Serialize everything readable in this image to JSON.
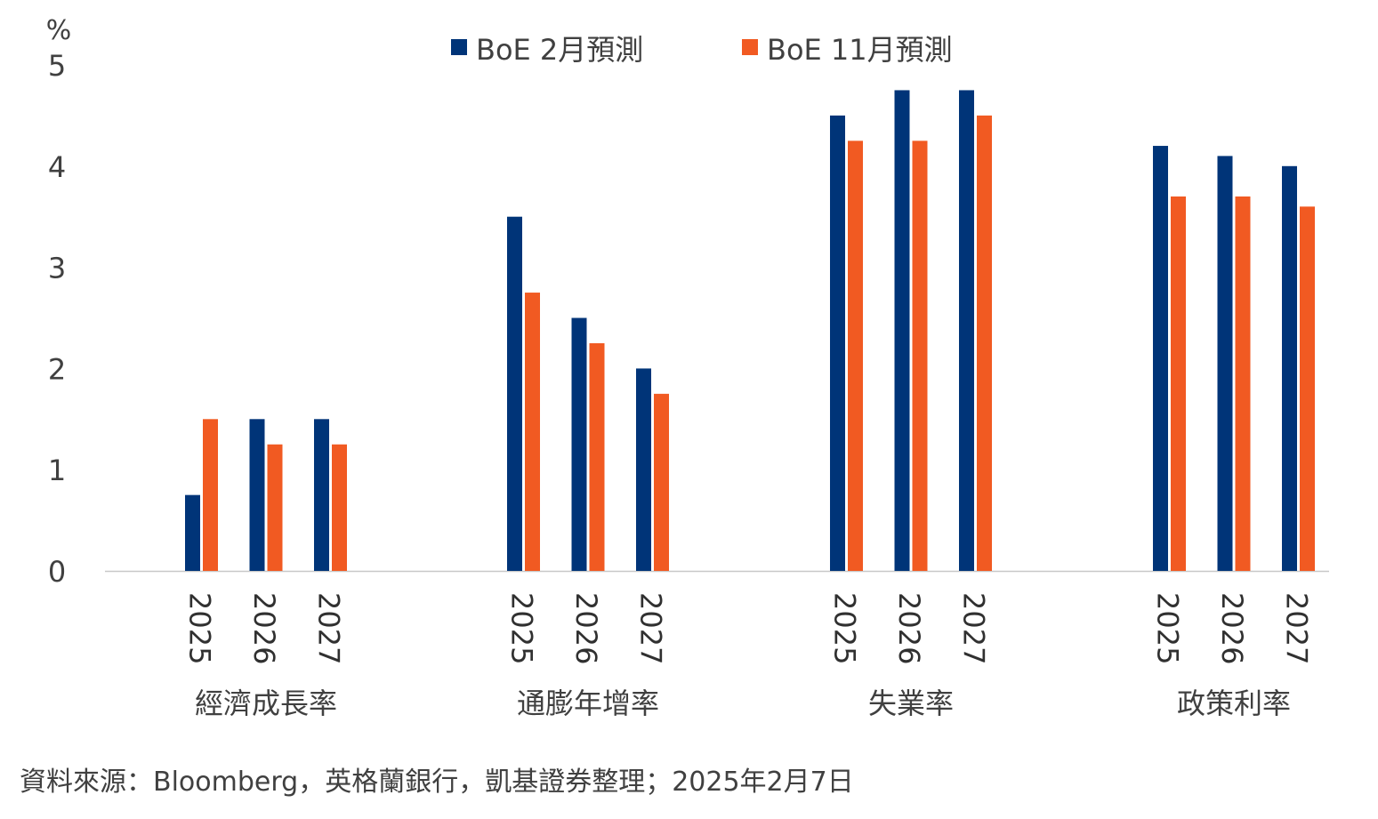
{
  "chart_data": {
    "type": "bar",
    "ylabel": "%",
    "ylim": [
      0,
      5
    ],
    "yticks": [
      "0",
      "1",
      "2",
      "3",
      "4",
      "5"
    ],
    "grid": false,
    "legend_position": "top-center",
    "groups": [
      {
        "label": "經濟成長率",
        "categories": [
          "2025",
          "2026",
          "2027"
        ]
      },
      {
        "label": "通膨年增率",
        "categories": [
          "2025",
          "2026",
          "2027"
        ]
      },
      {
        "label": "失業率",
        "categories": [
          "2025",
          "2026",
          "2027"
        ]
      },
      {
        "label": "政策利率",
        "categories": [
          "2025",
          "2026",
          "2027"
        ]
      }
    ],
    "series": [
      {
        "name": "BoE 2月預測",
        "color": "#003478",
        "values": [
          0.75,
          1.5,
          1.5,
          3.5,
          2.5,
          2.0,
          4.5,
          4.75,
          4.75,
          4.2,
          4.1,
          4.0
        ]
      },
      {
        "name": "BoE 11月預測",
        "color": "#F15A22",
        "values": [
          1.5,
          1.25,
          1.25,
          2.75,
          2.25,
          1.75,
          4.25,
          4.25,
          4.5,
          3.7,
          3.7,
          3.6
        ]
      }
    ]
  },
  "source": "資料來源：Bloomberg，英格蘭銀行，凱基證券整理；2025年2月7日"
}
